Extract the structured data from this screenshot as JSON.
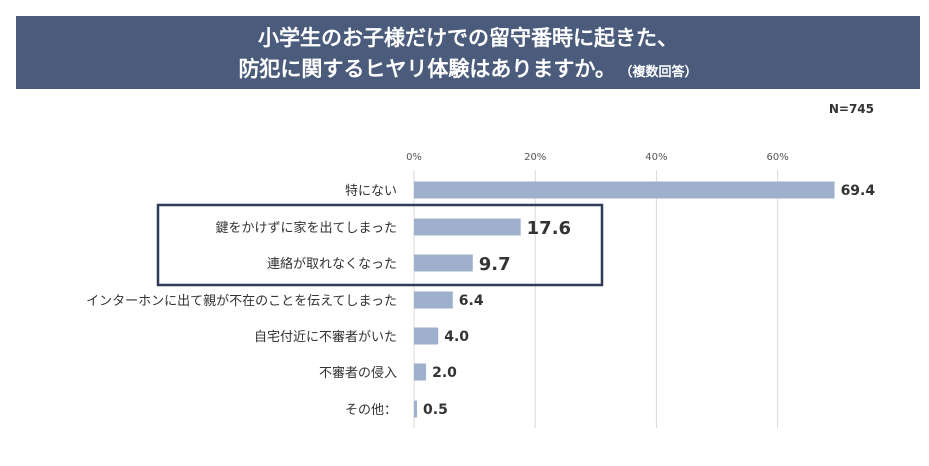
{
  "header": {
    "title_line1": "小学生のお子様だけでの留守番時に起きた、",
    "title_line2": "防犯に関するヒヤリ体験はありますか。",
    "title_note": "（複数回答）"
  },
  "sample_label": "N=745",
  "colors": {
    "header_bg": "#4a5b7c",
    "bar": "#9fb0cc",
    "highlight_border": "#2e3d55",
    "grid": "#d9d9d9"
  },
  "chart_data": {
    "type": "bar",
    "orientation": "horizontal",
    "categories": [
      "特にない",
      "鍵をかけずに家を出てしまった",
      "連絡が取れなくなった",
      "インターホンに出て親が不在のことを伝えてしまった",
      "自宅付近に不審者がいた",
      "不審者の侵入",
      "その他："
    ],
    "values": [
      69.4,
      17.6,
      9.7,
      6.4,
      4.0,
      2.0,
      0.5
    ],
    "value_labels": [
      "69.4",
      "17.6",
      "9.7",
      "6.4",
      "4.0",
      "2.0",
      "0.5"
    ],
    "highlighted": [
      false,
      true,
      true,
      false,
      false,
      false,
      false
    ],
    "xticks": [
      "0%",
      "20%",
      "40%",
      "60%"
    ],
    "xlim": [
      0,
      80
    ],
    "grid": true,
    "legend": "none"
  }
}
